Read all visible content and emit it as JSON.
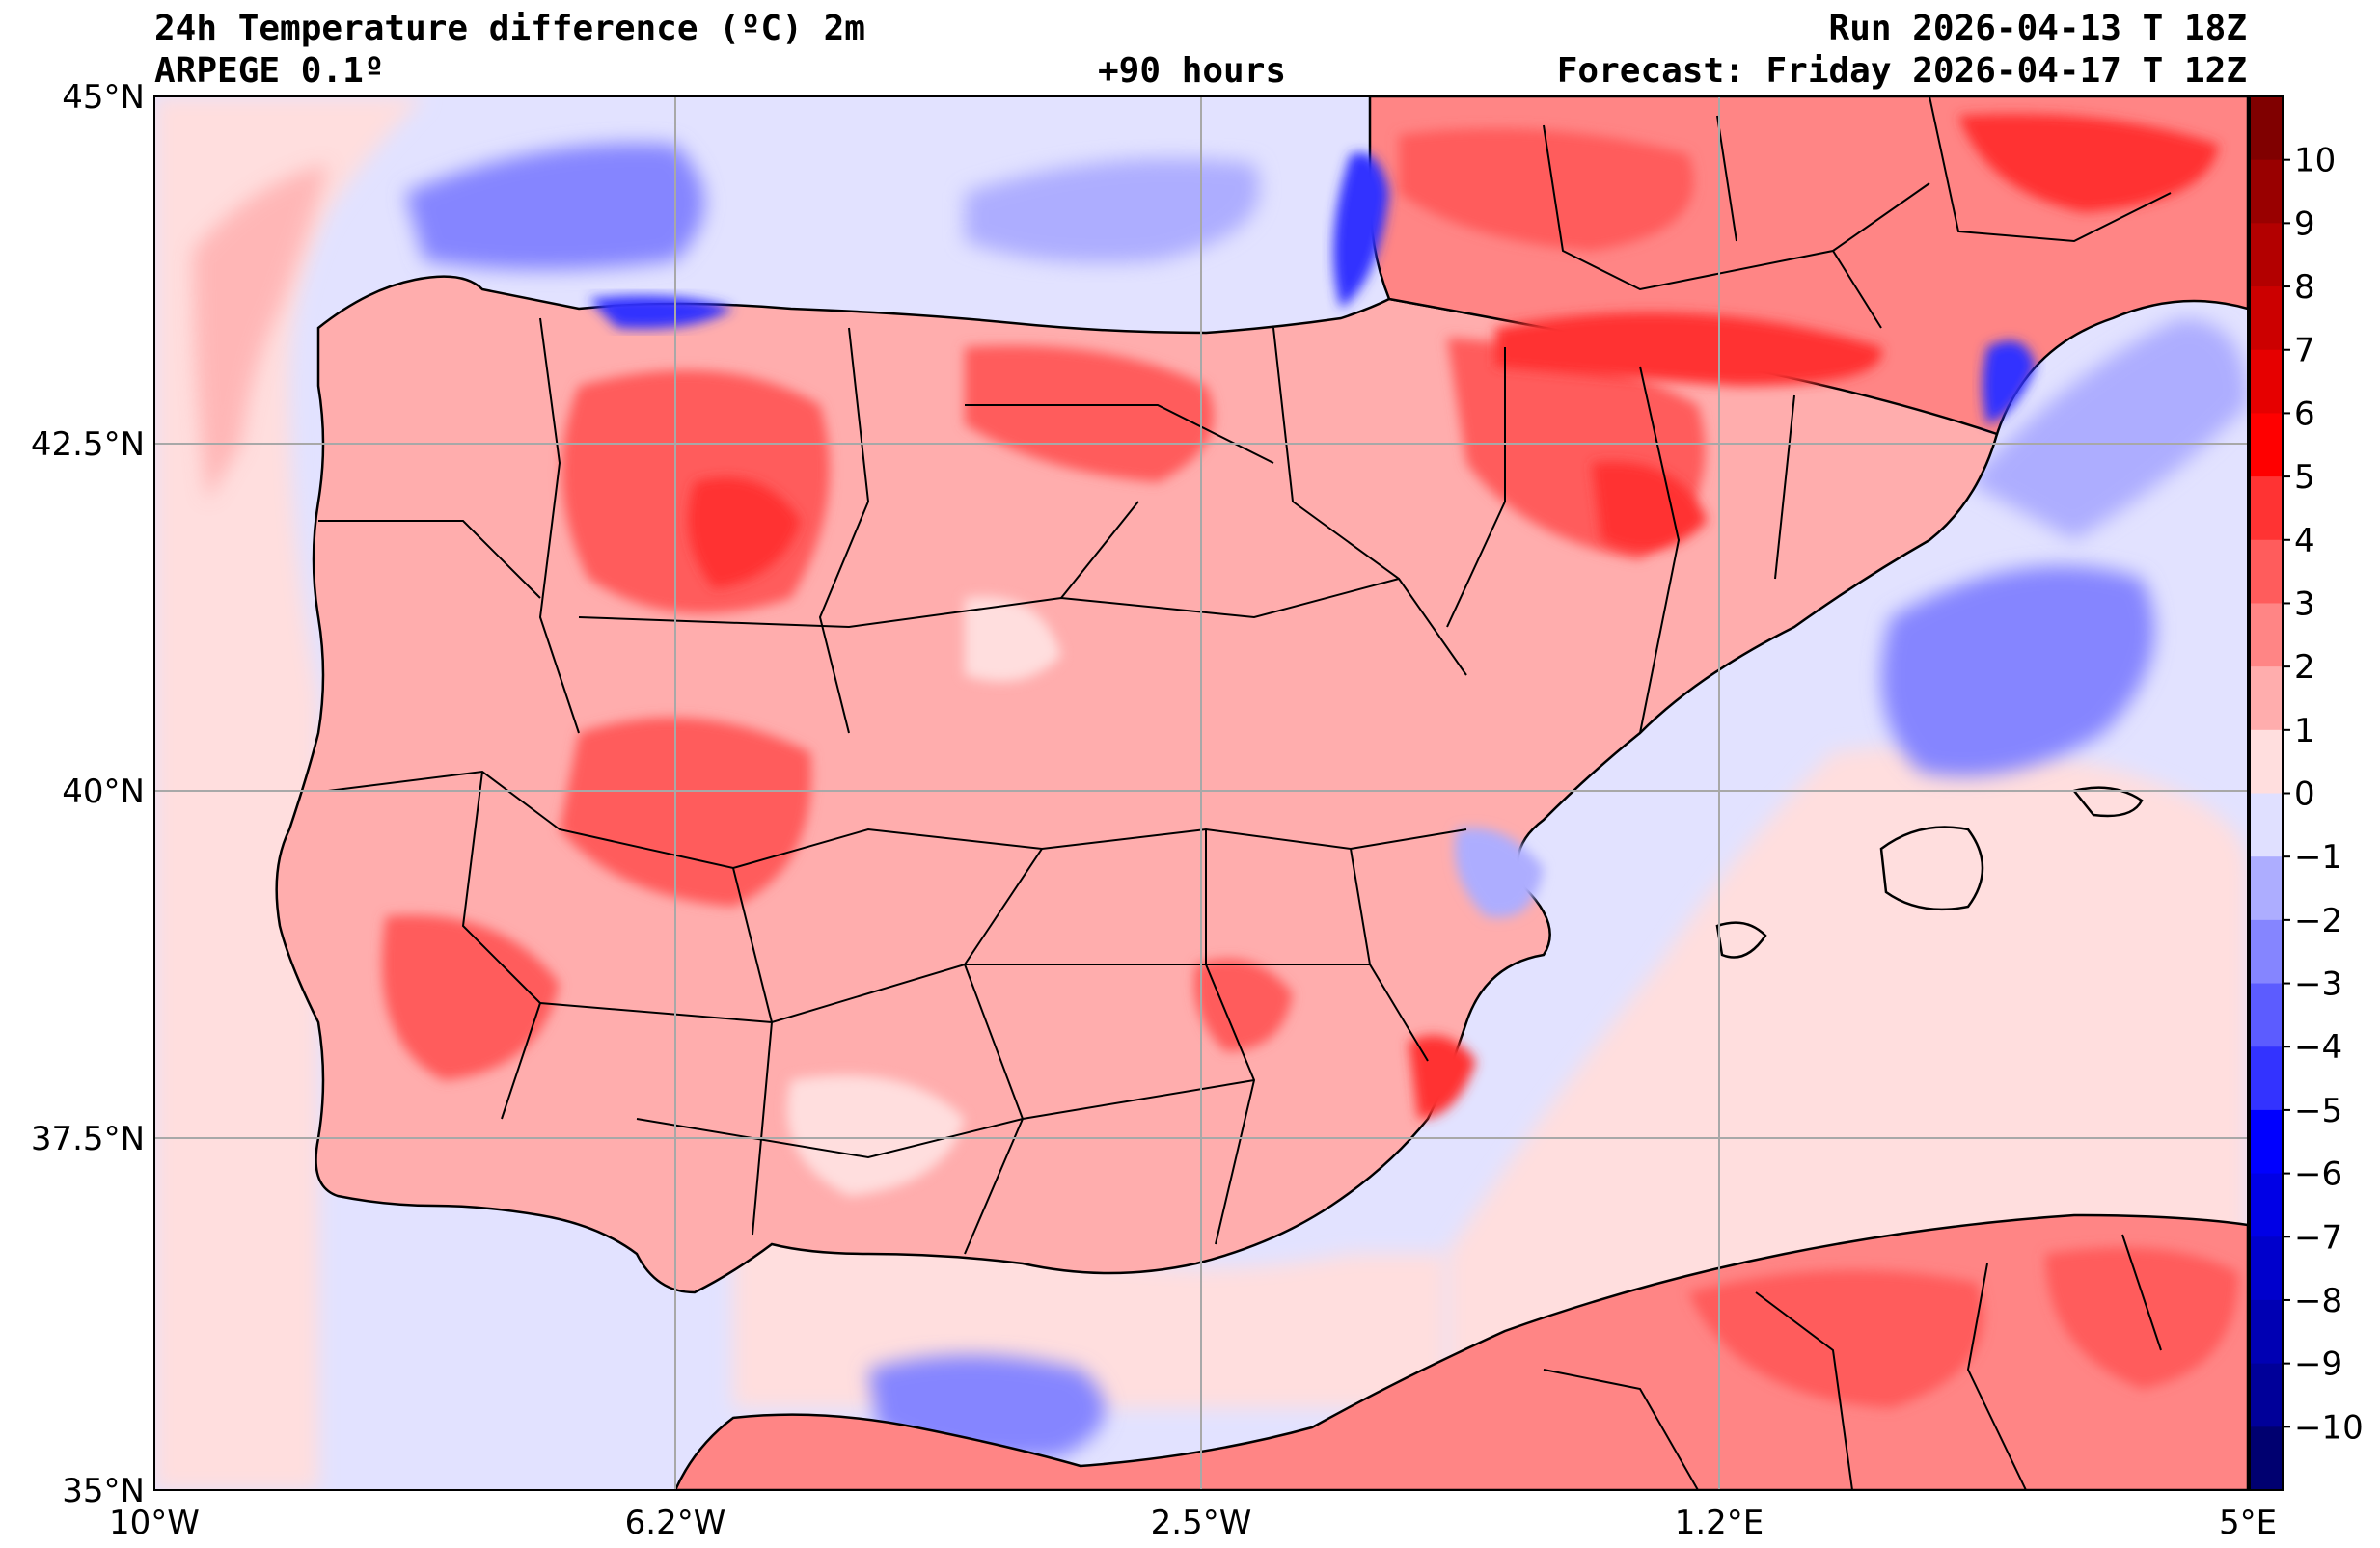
{
  "header": {
    "title": "24h Temperature difference (ºC) 2m",
    "model": "ARPEGE 0.1º",
    "lead": "+90 hours",
    "run": "Run 2026-04-13 T 18Z",
    "forecast": "Forecast: Friday 2026-04-17 T 12Z"
  },
  "axes": {
    "lon_labels": [
      "10°W",
      "6.2°W",
      "2.5°W",
      "1.2°E",
      "5°E"
    ],
    "lat_labels": [
      "45°N",
      "42.5°N",
      "40°N",
      "37.5°N",
      "35°N"
    ],
    "lon_range": [
      -10,
      5
    ],
    "lat_range": [
      35,
      45
    ],
    "grid": true
  },
  "colorbar": {
    "ticks": [
      "10",
      "9",
      "8",
      "7",
      "6",
      "5",
      "4",
      "3",
      "2",
      "1",
      "0",
      "−1",
      "−2",
      "−3",
      "−4",
      "−5",
      "−6",
      "−7",
      "−8",
      "−9",
      "−10"
    ],
    "levels_top_to_bottom": [
      "#800000",
      "#990000",
      "#b30000",
      "#cc0000",
      "#e60000",
      "#ff0000",
      "#ff3333",
      "#ff5c5c",
      "#ff8585",
      "#ffadad",
      "#ffdede",
      "#e0e0ff",
      "#adadff",
      "#8585ff",
      "#5c5cff",
      "#3333ff",
      "#0000ff",
      "#0000e6",
      "#0000cc",
      "#0000b3",
      "#000099",
      "#000070"
    ]
  },
  "colors": {
    "sea_base": "#e2e2ff",
    "land_base": "#ffadad",
    "grid": "#a8a8a8",
    "border": "#000000"
  }
}
